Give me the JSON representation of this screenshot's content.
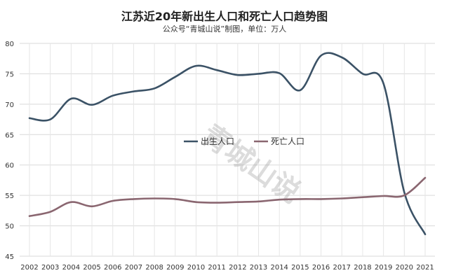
{
  "chart_data": {
    "type": "line",
    "title": "江苏近20年新出生人口和死亡人口趋势图",
    "subtitle": "公众号“青城山说”制图，单位：万人",
    "watermark": "青城山说",
    "x": [
      "2002",
      "2003",
      "2004",
      "2005",
      "2006",
      "2007",
      "2008",
      "2009",
      "2010",
      "2011",
      "2012",
      "2013",
      "2014",
      "2015",
      "2016",
      "2017",
      "2018",
      "2019",
      "2020",
      "2021"
    ],
    "series": [
      {
        "name": "出生人口",
        "color": "#3b5266",
        "values": [
          67.7,
          67.5,
          70.9,
          69.9,
          71.4,
          72.1,
          72.6,
          74.5,
          76.3,
          75.6,
          74.8,
          75.0,
          75.1,
          72.3,
          78.0,
          77.7,
          75.0,
          73.4,
          55.5,
          48.6
        ]
      },
      {
        "name": "死亡人口",
        "color": "#8a6670",
        "values": [
          51.6,
          52.3,
          53.9,
          53.2,
          54.1,
          54.4,
          54.5,
          54.4,
          53.9,
          53.8,
          53.9,
          54.0,
          54.3,
          54.4,
          54.4,
          54.5,
          54.7,
          54.9,
          55.0,
          57.9
        ]
      }
    ],
    "y_ticks": [
      45,
      50,
      55,
      60,
      65,
      70,
      75,
      80
    ],
    "ylim": [
      45,
      80
    ],
    "grid": true,
    "legend_position": "center"
  }
}
